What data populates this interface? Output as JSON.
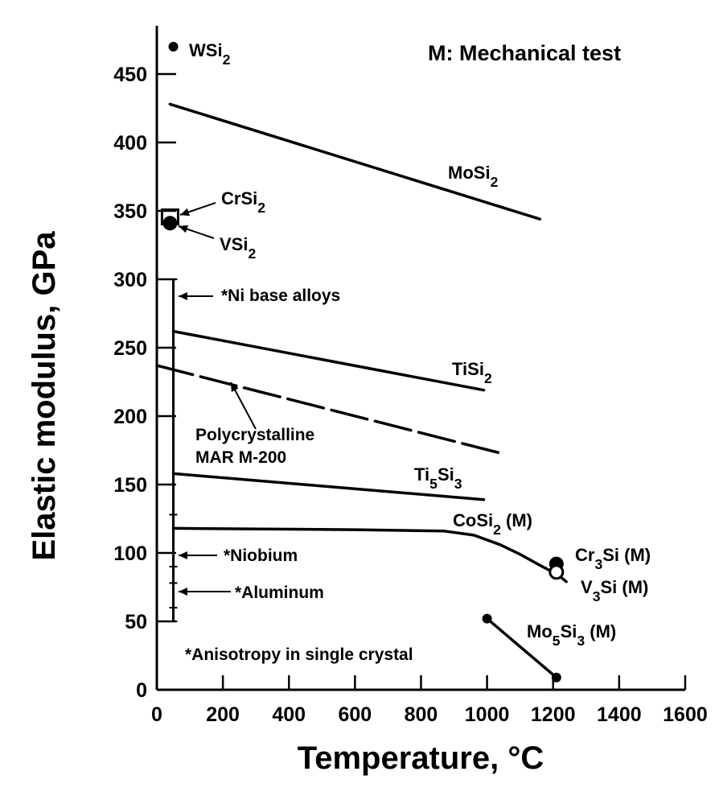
{
  "chart_data": {
    "type": "line",
    "header_note": "M:  Mechanical test",
    "xlabel": "Temperature, °C",
    "ylabel": "Elastic modulus, GPa",
    "xlim": [
      0,
      1600
    ],
    "ylim": [
      0,
      475
    ],
    "x_ticks": [
      0,
      200,
      400,
      600,
      800,
      1000,
      1200,
      1400,
      1600
    ],
    "y_ticks": [
      0,
      50,
      100,
      150,
      200,
      250,
      300,
      350,
      400,
      450
    ],
    "grid": false,
    "series": [
      {
        "name": "MoSi2",
        "style": "solid",
        "points": [
          [
            40,
            428
          ],
          [
            1160,
            344
          ]
        ]
      },
      {
        "name": "TiSi2",
        "style": "solid",
        "points": [
          [
            50,
            262
          ],
          [
            990,
            219
          ]
        ]
      },
      {
        "name": "Polycrystalline MAR M-200",
        "style": "dashed",
        "points": [
          [
            0,
            237
          ],
          [
            1040,
            173
          ]
        ]
      },
      {
        "name": "Ti5Si3",
        "style": "solid",
        "points": [
          [
            50,
            158
          ],
          [
            990,
            139
          ]
        ]
      },
      {
        "name": "CoSi2 (M)",
        "style": "solid",
        "points": [
          [
            50,
            118
          ],
          [
            600,
            117
          ],
          [
            870,
            116
          ],
          [
            960,
            113
          ],
          [
            1040,
            106
          ],
          [
            1100,
            99
          ],
          [
            1160,
            91
          ],
          [
            1215,
            84
          ],
          [
            1240,
            79
          ]
        ]
      },
      {
        "name": "Mo5Si3 (M)",
        "style": "solid",
        "points": [
          [
            1000,
            52
          ],
          [
            1210,
            9
          ]
        ]
      }
    ],
    "points": [
      {
        "name": "WSi2",
        "x": 50,
        "y": 470,
        "marker": "filled"
      },
      {
        "name": "CrSi2",
        "x": 40,
        "y": 345,
        "marker": "open-square"
      },
      {
        "name": "VSi2",
        "x": 40,
        "y": 341,
        "marker": "filled"
      },
      {
        "name": "Cr3Si (M)",
        "x": 1210,
        "y": 92,
        "marker": "filled"
      },
      {
        "name": "V3Si (M)",
        "x": 1210,
        "y": 86,
        "marker": "open"
      },
      {
        "name": "Mo5Si3 (M)",
        "x": 1000,
        "y": 52,
        "marker": "filled"
      },
      {
        "name": "Mo5Si3 (M)",
        "x": 1210,
        "y": 9,
        "marker": "filled"
      }
    ],
    "range_bars": [
      {
        "name": "*Ni base alloys",
        "x": 50,
        "low": 50,
        "high": 300
      },
      {
        "name": "*Niobium",
        "x": 50,
        "low": 90,
        "high": 128
      },
      {
        "name": "*Aluminum",
        "x": 50,
        "low": 60,
        "high": 78
      }
    ],
    "annotations": [
      {
        "text": "*Anisotropy in single crystal"
      }
    ]
  }
}
